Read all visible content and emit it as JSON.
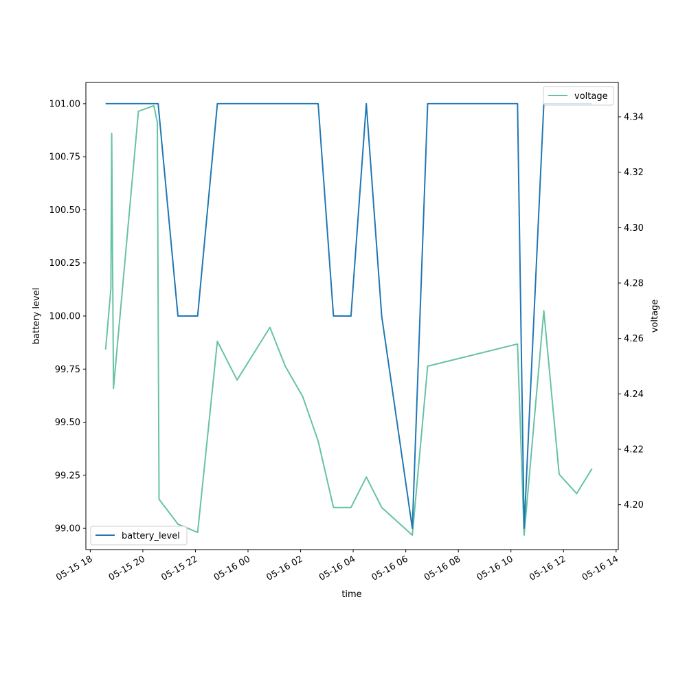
{
  "chart_data": {
    "type": "line",
    "title": "",
    "xlabel": "time",
    "xlim": [
      "2024-05-15T17:50",
      "2024-05-16T14:05"
    ],
    "x_ticks": [
      {
        "label": "05-15 18",
        "t": "2024-05-15T18:00"
      },
      {
        "label": "05-15 20",
        "t": "2024-05-15T20:00"
      },
      {
        "label": "05-15 22",
        "t": "2024-05-15T22:00"
      },
      {
        "label": "05-16 00",
        "t": "2024-05-16T00:00"
      },
      {
        "label": "05-16 02",
        "t": "2024-05-16T02:00"
      },
      {
        "label": "05-16 04",
        "t": "2024-05-16T04:00"
      },
      {
        "label": "05-16 06",
        "t": "2024-05-16T06:00"
      },
      {
        "label": "05-16 08",
        "t": "2024-05-16T08:00"
      },
      {
        "label": "05-16 10",
        "t": "2024-05-16T10:00"
      },
      {
        "label": "05-16 12",
        "t": "2024-05-16T12:00"
      },
      {
        "label": "05-16 14",
        "t": "2024-05-16T14:00"
      }
    ],
    "left_axis": {
      "label": "battery level",
      "ylim": [
        98.9,
        101.1
      ],
      "ticks": [
        {
          "value": 99.0,
          "label": "99.00"
        },
        {
          "value": 99.25,
          "label": "99.25"
        },
        {
          "value": 99.5,
          "label": "99.50"
        },
        {
          "value": 99.75,
          "label": "99.75"
        },
        {
          "value": 100.0,
          "label": "100.00"
        },
        {
          "value": 100.25,
          "label": "100.25"
        },
        {
          "value": 100.5,
          "label": "100.50"
        },
        {
          "value": 100.75,
          "label": "100.75"
        },
        {
          "value": 101.0,
          "label": "101.00"
        }
      ]
    },
    "right_axis": {
      "label": "voltage",
      "ylim": [
        4.1838,
        4.3524
      ],
      "ticks": [
        {
          "value": 4.2,
          "label": "4.20"
        },
        {
          "value": 4.22,
          "label": "4.22"
        },
        {
          "value": 4.24,
          "label": "4.24"
        },
        {
          "value": 4.26,
          "label": "4.26"
        },
        {
          "value": 4.28,
          "label": "4.28"
        },
        {
          "value": 4.3,
          "label": "4.30"
        },
        {
          "value": 4.32,
          "label": "4.32"
        },
        {
          "value": 4.34,
          "label": "4.34"
        }
      ]
    },
    "series": [
      {
        "name": "battery_level",
        "axis": "left",
        "color": "#1f77b4",
        "legend": "lower-left",
        "points": [
          {
            "t": "2024-05-15T18:35",
            "y": 101
          },
          {
            "t": "2024-05-15T20:35",
            "y": 101
          },
          {
            "t": "2024-05-15T21:20",
            "y": 100
          },
          {
            "t": "2024-05-15T22:05",
            "y": 100
          },
          {
            "t": "2024-05-15T22:50",
            "y": 101
          },
          {
            "t": "2024-05-16T02:40",
            "y": 101
          },
          {
            "t": "2024-05-16T03:15",
            "y": 100
          },
          {
            "t": "2024-05-16T03:55",
            "y": 100
          },
          {
            "t": "2024-05-16T04:30",
            "y": 101
          },
          {
            "t": "2024-05-16T05:05",
            "y": 100
          },
          {
            "t": "2024-05-16T06:15",
            "y": 99
          },
          {
            "t": "2024-05-16T06:50",
            "y": 101
          },
          {
            "t": "2024-05-16T10:15",
            "y": 101
          },
          {
            "t": "2024-05-16T10:30",
            "y": 99
          },
          {
            "t": "2024-05-16T11:15",
            "y": 101
          },
          {
            "t": "2024-05-16T13:05",
            "y": 101
          }
        ]
      },
      {
        "name": "voltage",
        "axis": "right",
        "color": "#66c2a5",
        "legend": "upper-right",
        "points": [
          {
            "t": "2024-05-15T18:35",
            "y": 4.256
          },
          {
            "t": "2024-05-15T18:47",
            "y": 4.278
          },
          {
            "t": "2024-05-15T18:49",
            "y": 4.334
          },
          {
            "t": "2024-05-15T18:53",
            "y": 4.242
          },
          {
            "t": "2024-05-15T19:50",
            "y": 4.342
          },
          {
            "t": "2024-05-15T20:25",
            "y": 4.344
          },
          {
            "t": "2024-05-15T20:33",
            "y": 4.338
          },
          {
            "t": "2024-05-15T20:37",
            "y": 4.202
          },
          {
            "t": "2024-05-15T21:20",
            "y": 4.193
          },
          {
            "t": "2024-05-15T22:05",
            "y": 4.19
          },
          {
            "t": "2024-05-15T22:50",
            "y": 4.259
          },
          {
            "t": "2024-05-15T23:35",
            "y": 4.245
          },
          {
            "t": "2024-05-16T00:50",
            "y": 4.264
          },
          {
            "t": "2024-05-16T01:25",
            "y": 4.25
          },
          {
            "t": "2024-05-16T02:05",
            "y": 4.239
          },
          {
            "t": "2024-05-16T02:40",
            "y": 4.223
          },
          {
            "t": "2024-05-16T03:15",
            "y": 4.199
          },
          {
            "t": "2024-05-16T03:55",
            "y": 4.199
          },
          {
            "t": "2024-05-16T04:30",
            "y": 4.21
          },
          {
            "t": "2024-05-16T05:05",
            "y": 4.199
          },
          {
            "t": "2024-05-16T06:15",
            "y": 4.189
          },
          {
            "t": "2024-05-16T06:50",
            "y": 4.25
          },
          {
            "t": "2024-05-16T10:15",
            "y": 4.258
          },
          {
            "t": "2024-05-16T10:30",
            "y": 4.189
          },
          {
            "t": "2024-05-16T11:15",
            "y": 4.27
          },
          {
            "t": "2024-05-16T11:50",
            "y": 4.211
          },
          {
            "t": "2024-05-16T12:30",
            "y": 4.204
          },
          {
            "t": "2024-05-16T13:05",
            "y": 4.213
          }
        ]
      }
    ],
    "grid": false,
    "legends": [
      {
        "series": "battery_level",
        "placement": "lower-left"
      },
      {
        "series": "voltage",
        "placement": "upper-right"
      }
    ]
  }
}
